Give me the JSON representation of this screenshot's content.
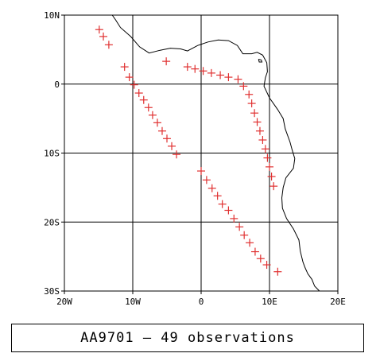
{
  "caption": "AA9701 — 49 observations",
  "colors": {
    "marker": "#e03030",
    "coastline": "#000000",
    "grid": "#000000"
  },
  "map": {
    "lon_range": [
      -20,
      20
    ],
    "lat_range": [
      -30,
      10
    ],
    "lon_ticks": [
      {
        "value": -20,
        "label": "20W"
      },
      {
        "value": -10,
        "label": "10W"
      },
      {
        "value": 0,
        "label": "0"
      },
      {
        "value": 10,
        "label": "10E"
      },
      {
        "value": 20,
        "label": "20E"
      }
    ],
    "lat_ticks": [
      {
        "value": 10,
        "label": "10N"
      },
      {
        "value": 0,
        "label": "0"
      },
      {
        "value": -10,
        "label": "10S"
      },
      {
        "value": -20,
        "label": "20S"
      },
      {
        "value": -30,
        "label": "30S"
      }
    ],
    "grid_lons": [
      -10,
      0,
      10
    ],
    "grid_lats": [
      0,
      -10,
      -20
    ],
    "coastline": [
      [
        -13,
        10
      ],
      [
        -12.5,
        9.3
      ],
      [
        -11.8,
        8.2
      ],
      [
        -10.3,
        6.9
      ],
      [
        -9,
        5.4
      ],
      [
        -7.6,
        4.5
      ],
      [
        -6,
        4.9
      ],
      [
        -4.5,
        5.2
      ],
      [
        -3,
        5.1
      ],
      [
        -2,
        4.8
      ],
      [
        -0.5,
        5.6
      ],
      [
        1,
        6.1
      ],
      [
        2.5,
        6.4
      ],
      [
        4,
        6.3
      ],
      [
        5.3,
        5.6
      ],
      [
        6.1,
        4.4
      ],
      [
        7.4,
        4.4
      ],
      [
        8.2,
        4.6
      ],
      [
        9,
        4.2
      ],
      [
        9.6,
        3.1
      ],
      [
        9.7,
        1.8
      ],
      [
        9.4,
        0.9
      ],
      [
        9.2,
        -0.3
      ],
      [
        10,
        -2
      ],
      [
        11.2,
        -3.7
      ],
      [
        12,
        -5
      ],
      [
        12.3,
        -6.5
      ],
      [
        13,
        -8.4
      ],
      [
        13.3,
        -9.5
      ],
      [
        13.7,
        -10.8
      ],
      [
        13.5,
        -12.2
      ],
      [
        12.4,
        -13.6
      ],
      [
        12,
        -15
      ],
      [
        11.8,
        -16.5
      ],
      [
        11.9,
        -18
      ],
      [
        12.5,
        -19.5
      ],
      [
        13.5,
        -21
      ],
      [
        14.3,
        -22.6
      ],
      [
        14.5,
        -24.2
      ],
      [
        14.9,
        -25.8
      ],
      [
        15.2,
        -26.6
      ],
      [
        15.6,
        -27.5
      ],
      [
        16.2,
        -28.3
      ],
      [
        16.6,
        -29.3
      ],
      [
        17.3,
        -30
      ]
    ],
    "island": [
      [
        8.4,
        3.6
      ],
      [
        8.8,
        3.5
      ],
      [
        8.9,
        3.2
      ],
      [
        8.5,
        3.2
      ],
      [
        8.4,
        3.6
      ]
    ],
    "observations": [
      [
        -14.9,
        7.9
      ],
      [
        -14.3,
        6.9
      ],
      [
        -13.5,
        5.7
      ],
      [
        -5.1,
        3.3
      ],
      [
        -11.2,
        2.5
      ],
      [
        -10.5,
        1.0
      ],
      [
        -9.8,
        -0.1
      ],
      [
        -9.1,
        -1.3
      ],
      [
        -8.4,
        -2.3
      ],
      [
        -7.7,
        -3.4
      ],
      [
        -7.1,
        -4.5
      ],
      [
        -6.4,
        -5.6
      ],
      [
        -5.7,
        -6.8
      ],
      [
        -5.0,
        -7.9
      ],
      [
        -4.3,
        -9.0
      ],
      [
        -3.6,
        -10.2
      ],
      [
        -2.0,
        2.5
      ],
      [
        -0.9,
        2.2
      ],
      [
        0.3,
        1.9
      ],
      [
        1.5,
        1.6
      ],
      [
        2.8,
        1.3
      ],
      [
        4.0,
        1.0
      ],
      [
        5.4,
        0.7
      ],
      [
        6.2,
        -0.3
      ],
      [
        7.0,
        -1.5
      ],
      [
        7.4,
        -2.8
      ],
      [
        7.8,
        -4.2
      ],
      [
        8.2,
        -5.5
      ],
      [
        8.6,
        -6.8
      ],
      [
        9.0,
        -8.1
      ],
      [
        9.4,
        -9.4
      ],
      [
        9.7,
        -10.7
      ],
      [
        10.0,
        -12.0
      ],
      [
        10.3,
        -13.4
      ],
      [
        10.6,
        -14.8
      ],
      [
        0.0,
        -12.6
      ],
      [
        0.8,
        -13.9
      ],
      [
        1.6,
        -15.1
      ],
      [
        2.4,
        -16.2
      ],
      [
        3.1,
        -17.4
      ],
      [
        4.0,
        -18.3
      ],
      [
        4.8,
        -19.5
      ],
      [
        5.6,
        -20.7
      ],
      [
        6.3,
        -21.9
      ],
      [
        7.1,
        -23.0
      ],
      [
        7.9,
        -24.3
      ],
      [
        8.7,
        -25.3
      ],
      [
        9.6,
        -26.2
      ],
      [
        11.2,
        -27.2
      ]
    ]
  }
}
